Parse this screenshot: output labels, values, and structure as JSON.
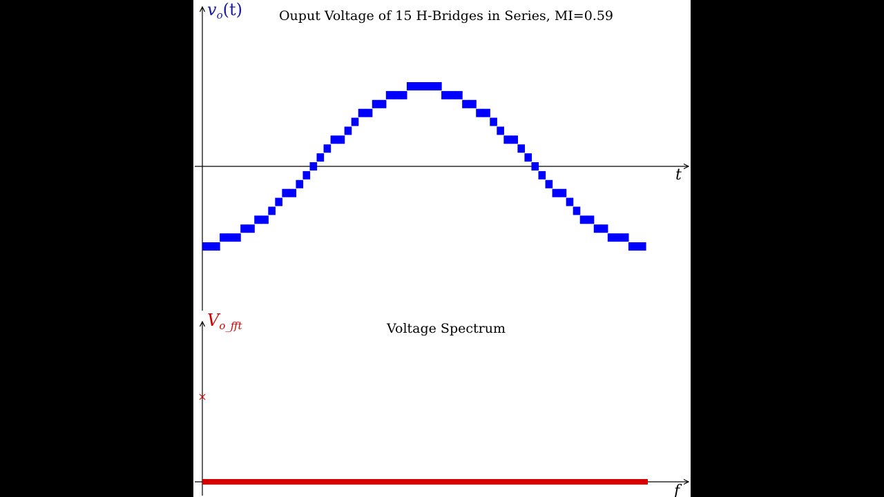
{
  "colors": {
    "waveform": "#0000ff",
    "spectrum": "#d40000",
    "axis": "#000000",
    "background": "#ffffff"
  },
  "chart_data": [
    {
      "type": "line",
      "title": "Ouput Voltage of 15 H-Bridges in Series, MI=0.59",
      "xlabel": "t",
      "ylabel": "v_o(t)",
      "ylabel_display": {
        "main": "v",
        "sub": "o",
        "rest": "(t)"
      },
      "grid": false,
      "ylim": [
        -13,
        13
      ],
      "x_period_fraction": [
        0,
        0.015625,
        0.03125,
        0.046875,
        0.0625,
        0.078125,
        0.09375,
        0.109375,
        0.125,
        0.140625,
        0.15625,
        0.171875,
        0.1875,
        0.203125,
        0.21875,
        0.234375,
        0.25,
        0.265625,
        0.28125,
        0.296875,
        0.3125,
        0.328125,
        0.34375,
        0.359375,
        0.375,
        0.390625,
        0.40625,
        0.421875,
        0.4375,
        0.453125,
        0.46875,
        0.484375,
        0.5,
        0.515625,
        0.53125,
        0.546875,
        0.5625,
        0.578125,
        0.59375,
        0.609375,
        0.625,
        0.640625,
        0.65625,
        0.671875,
        0.6875,
        0.703125,
        0.71875,
        0.734375,
        0.75,
        0.765625,
        0.78125,
        0.796875,
        0.8125,
        0.828125,
        0.84375,
        0.859375,
        0.875,
        0.890625,
        0.90625,
        0.921875,
        0.9375,
        0.953125,
        0.96875,
        0.984375,
        1
      ],
      "levels": [
        -9,
        -9,
        -9,
        -8,
        -8,
        -8,
        -7,
        -7,
        -6,
        -6,
        -5,
        -4,
        -3,
        -3,
        -2,
        -1,
        0,
        1,
        2,
        3,
        3,
        4,
        5,
        6,
        6,
        7,
        7,
        8,
        8,
        8,
        9,
        9,
        9,
        9,
        9,
        8,
        8,
        8,
        7,
        7,
        6,
        6,
        5,
        4,
        3,
        3,
        2,
        1,
        0,
        -1,
        -2,
        -3,
        -3,
        -4,
        -5,
        -6,
        -6,
        -7,
        -7,
        -8,
        -8,
        -8,
        -9,
        -9,
        -9
      ]
    },
    {
      "type": "scatter",
      "title": "Voltage Spectrum",
      "xlabel": "f",
      "ylabel": "V_o_fft",
      "ylabel_display": {
        "main": "V",
        "sub": "o_fft"
      },
      "grid": false,
      "marker": "x",
      "ylim": [
        0,
        1.85
      ],
      "fundamental": {
        "f": 0,
        "magnitude": 1
      },
      "harmonics_magnitude": 0
    }
  ]
}
